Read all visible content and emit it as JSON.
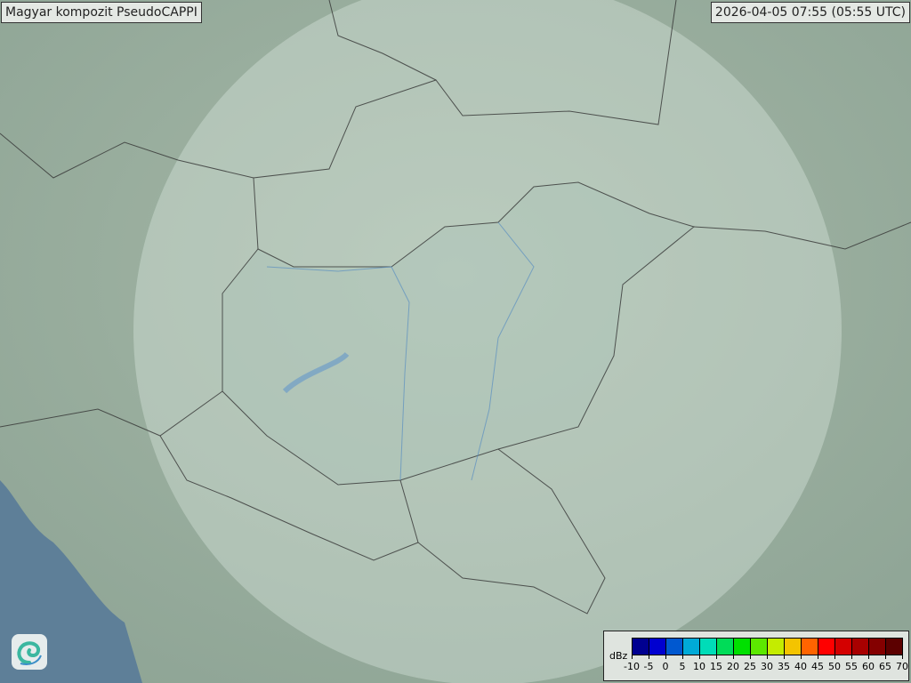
{
  "header": {
    "title": "Magyar kompozit  PseudoCAPPI",
    "timestamp": "2026-04-05 07:55 (05:55 UTC)"
  },
  "map": {
    "land_color": "#9cb09f",
    "sea_color": "#5e7f98",
    "radar_coverage_color": "#dce9e2",
    "has_radar_echo": false
  },
  "legend": {
    "unit": "dBz",
    "ticks": [
      "-10",
      "-5",
      "0",
      "5",
      "10",
      "15",
      "20",
      "25",
      "30",
      "35",
      "40",
      "45",
      "50",
      "55",
      "60",
      "65",
      "70"
    ],
    "colors": [
      "#000090",
      "#0000d0",
      "#0058d0",
      "#00aad8",
      "#00dcb8",
      "#00dc58",
      "#00e000",
      "#5ce800",
      "#c4ec00",
      "#f4c400",
      "#ff6400",
      "#ff0000",
      "#d40000",
      "#a80000",
      "#840000",
      "#5c0000"
    ]
  },
  "logo": {
    "icon": "swirl-logo-icon"
  }
}
